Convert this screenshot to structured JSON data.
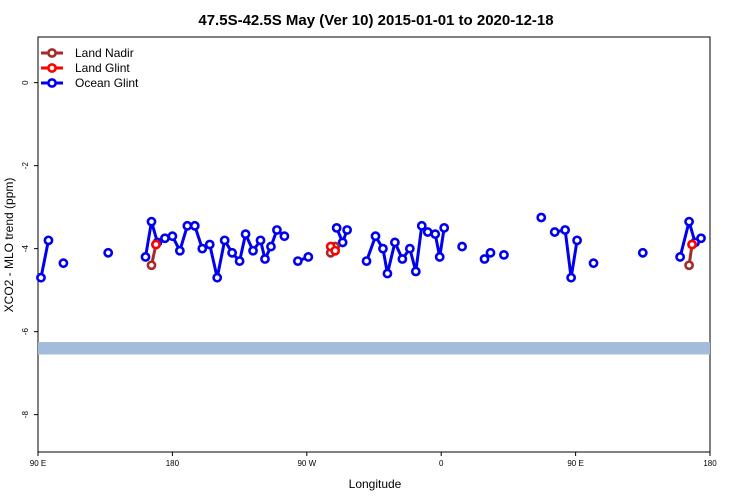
{
  "chart_data": {
    "type": "line",
    "title": "47.5S-42.5S May (Ver 10)   2015-01-01 to 2020-12-18",
    "xlabel": "Longitude",
    "ylabel": "XCO2 - MLO trend (ppm)",
    "xlim": [
      90,
      540
    ],
    "ylim": [
      -8.9,
      1.1
    ],
    "x_ticks": [
      {
        "value": 90,
        "label": "90 E"
      },
      {
        "value": 180,
        "label": "180"
      },
      {
        "value": 270,
        "label": "90 W"
      },
      {
        "value": 360,
        "label": "0"
      },
      {
        "value": 450,
        "label": "90 E"
      },
      {
        "value": 540,
        "label": "180"
      }
    ],
    "y_ticks": [
      0,
      -2,
      -4,
      -6,
      -8
    ],
    "legend_position": "top-left",
    "band": {
      "y_from": -6.55,
      "y_to": -6.25,
      "color": "#a4bcdc"
    },
    "series": [
      {
        "name": "Land Nadir",
        "color": "#a52a2a",
        "segments": [
          [
            [
              166,
              -4.4
            ],
            [
              169,
              -3.9
            ]
          ],
          [
            [
              286,
              -4.1
            ],
            [
              289,
              -3.95
            ]
          ],
          [
            [
              526,
              -4.4
            ],
            [
              528,
              -3.9
            ]
          ]
        ]
      },
      {
        "name": "Land Glint",
        "color": "#ff0000",
        "segments": [
          [
            [
              169,
              -3.9
            ]
          ],
          [
            [
              286,
              -3.95
            ],
            [
              289,
              -4.05
            ]
          ],
          [
            [
              528,
              -3.9
            ]
          ]
        ]
      },
      {
        "name": "Ocean Glint",
        "color": "#0000ee",
        "segments": [
          [
            [
              92,
              -4.7
            ],
            [
              97,
              -3.8
            ]
          ],
          [
            [
              107,
              -4.35
            ]
          ],
          [
            [
              137,
              -4.1
            ]
          ],
          [
            [
              162,
              -4.2
            ],
            [
              166,
              -3.35
            ],
            [
              170,
              -3.85
            ],
            [
              175,
              -3.75
            ],
            [
              180,
              -3.7
            ],
            [
              185,
              -4.05
            ],
            [
              190,
              -3.45
            ],
            [
              195,
              -3.45
            ],
            [
              200,
              -4.0
            ],
            [
              205,
              -3.9
            ],
            [
              210,
              -4.7
            ],
            [
              215,
              -3.8
            ],
            [
              220,
              -4.1
            ],
            [
              225,
              -4.3
            ],
            [
              229,
              -3.65
            ],
            [
              234,
              -4.05
            ],
            [
              239,
              -3.8
            ],
            [
              242,
              -4.25
            ],
            [
              246,
              -3.95
            ],
            [
              250,
              -3.55
            ],
            [
              255,
              -3.7
            ]
          ],
          [
            [
              264,
              -4.3
            ],
            [
              271,
              -4.2
            ]
          ],
          [
            [
              290,
              -3.5
            ],
            [
              294,
              -3.85
            ],
            [
              297,
              -3.55
            ]
          ],
          [
            [
              310,
              -4.3
            ],
            [
              316,
              -3.7
            ],
            [
              321,
              -4.0
            ],
            [
              324,
              -4.6
            ],
            [
              329,
              -3.85
            ],
            [
              334,
              -4.25
            ],
            [
              339,
              -4.0
            ],
            [
              343,
              -4.55
            ],
            [
              347,
              -3.45
            ],
            [
              351,
              -3.6
            ],
            [
              356,
              -3.65
            ],
            [
              359,
              -4.2
            ],
            [
              362,
              -3.5
            ]
          ],
          [
            [
              374,
              -3.95
            ]
          ],
          [
            [
              389,
              -4.25
            ],
            [
              393,
              -4.1
            ]
          ],
          [
            [
              402,
              -4.15
            ]
          ],
          [
            [
              427,
              -3.25
            ]
          ],
          [
            [
              436,
              -3.6
            ],
            [
              443,
              -3.55
            ],
            [
              447,
              -4.7
            ],
            [
              451,
              -3.8
            ]
          ],
          [
            [
              462,
              -4.35
            ]
          ],
          [
            [
              495,
              -4.1
            ]
          ],
          [
            [
              520,
              -4.2
            ],
            [
              526,
              -3.35
            ],
            [
              530,
              -3.85
            ],
            [
              534,
              -3.75
            ]
          ]
        ]
      }
    ]
  }
}
